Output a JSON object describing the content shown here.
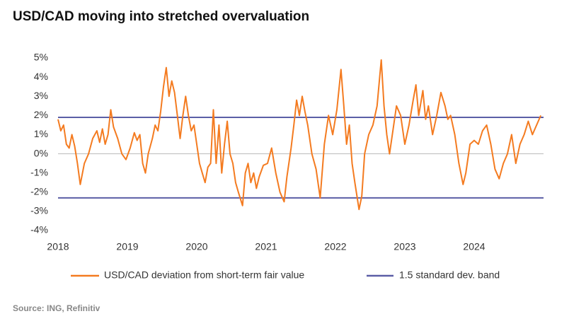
{
  "chart_data": {
    "type": "line",
    "title": "USD/CAD moving into stretched overvaluation",
    "source": "Source: ING, Refinitiv",
    "x": [
      2018.0,
      2018.04,
      2018.08,
      2018.12,
      2018.16,
      2018.2,
      2018.24,
      2018.28,
      2018.32,
      2018.38,
      2018.44,
      2018.5,
      2018.56,
      2018.6,
      2018.64,
      2018.68,
      2018.72,
      2018.76,
      2018.8,
      2018.86,
      2018.92,
      2018.98,
      2019.04,
      2019.1,
      2019.14,
      2019.18,
      2019.22,
      2019.26,
      2019.3,
      2019.36,
      2019.4,
      2019.44,
      2019.48,
      2019.52,
      2019.56,
      2019.6,
      2019.64,
      2019.68,
      2019.72,
      2019.76,
      2019.8,
      2019.84,
      2019.88,
      2019.92,
      2019.96,
      2020.0,
      2020.04,
      2020.08,
      2020.12,
      2020.16,
      2020.2,
      2020.24,
      2020.28,
      2020.32,
      2020.36,
      2020.4,
      2020.44,
      2020.48,
      2020.52,
      2020.56,
      2020.6,
      2020.66,
      2020.7,
      2020.74,
      2020.78,
      2020.82,
      2020.86,
      2020.9,
      2020.96,
      2021.02,
      2021.08,
      2021.14,
      2021.2,
      2021.26,
      2021.3,
      2021.36,
      2021.4,
      2021.44,
      2021.48,
      2021.52,
      2021.56,
      2021.6,
      2021.66,
      2021.72,
      2021.78,
      2021.84,
      2021.9,
      2021.96,
      2022.02,
      2022.08,
      2022.12,
      2022.16,
      2022.2,
      2022.24,
      2022.28,
      2022.34,
      2022.38,
      2022.42,
      2022.48,
      2022.54,
      2022.6,
      2022.66,
      2022.7,
      2022.74,
      2022.78,
      2022.84,
      2022.88,
      2022.94,
      2023.0,
      2023.06,
      2023.12,
      2023.16,
      2023.2,
      2023.26,
      2023.3,
      2023.34,
      2023.4,
      2023.46,
      2023.52,
      2023.58,
      2023.62,
      2023.66,
      2023.72,
      2023.78,
      2023.84,
      2023.88,
      2023.94,
      2024.0,
      2024.06,
      2024.12,
      2024.18,
      2024.24,
      2024.3,
      2024.36,
      2024.42,
      2024.48,
      2024.54,
      2024.6,
      2024.66,
      2024.72,
      2024.78,
      2024.84,
      2024.9,
      2024.96
    ],
    "series": [
      {
        "name": "USD/CAD deviation from short-term fair value",
        "color": "#f47b20",
        "values": [
          1.8,
          1.2,
          1.5,
          0.5,
          0.3,
          1.0,
          0.4,
          -0.5,
          -1.6,
          -0.5,
          0.0,
          0.8,
          1.2,
          0.6,
          1.3,
          0.5,
          1.0,
          2.3,
          1.4,
          0.8,
          0.0,
          -0.3,
          0.3,
          1.1,
          0.7,
          1.0,
          -0.5,
          -1.0,
          0.0,
          0.8,
          1.5,
          1.2,
          2.2,
          3.5,
          4.5,
          3.0,
          3.8,
          3.2,
          2.0,
          0.8,
          2.0,
          3.0,
          2.0,
          1.2,
          1.5,
          0.5,
          -0.5,
          -1.0,
          -1.5,
          -0.7,
          -0.5,
          2.3,
          -0.5,
          1.5,
          -1.0,
          0.5,
          1.7,
          0.0,
          -0.5,
          -1.5,
          -2.0,
          -2.7,
          -1.0,
          -0.5,
          -1.5,
          -1.0,
          -1.8,
          -1.2,
          -0.6,
          -0.5,
          0.3,
          -1.0,
          -2.0,
          -2.5,
          -1.2,
          0.3,
          1.5,
          2.8,
          2.0,
          3.0,
          2.2,
          1.5,
          0.0,
          -0.8,
          -2.3,
          0.5,
          2.0,
          1.0,
          2.3,
          4.4,
          2.5,
          0.5,
          1.5,
          -0.5,
          -1.5,
          -2.9,
          -2.2,
          0.0,
          1.0,
          1.5,
          2.5,
          4.9,
          2.5,
          1.0,
          0.0,
          1.5,
          2.5,
          2.0,
          0.5,
          1.5,
          2.8,
          3.6,
          2.0,
          3.3,
          1.8,
          2.5,
          1.0,
          2.0,
          3.2,
          2.5,
          1.8,
          2.0,
          1.0,
          -0.5,
          -1.6,
          -1.0,
          0.5,
          0.7,
          0.5,
          1.2,
          1.5,
          0.5,
          -0.8,
          -1.3,
          -0.5,
          0.0,
          1.0,
          -0.5,
          0.5,
          1.0,
          1.7,
          1.0,
          1.5,
          2.0
        ]
      }
    ],
    "reference_lines": {
      "name": "1.5 standard dev. band",
      "color": "#5b5ea6",
      "values": [
        1.9,
        -2.3
      ]
    },
    "xlim": [
      2018,
      2025
    ],
    "xticks": [
      2018,
      2019,
      2020,
      2021,
      2022,
      2023,
      2024
    ],
    "ylim": [
      -4,
      5
    ],
    "yticks": [
      {
        "value": -4,
        "label": "-4%"
      },
      {
        "value": -3,
        "label": "-3%"
      },
      {
        "value": -2,
        "label": "-2%"
      },
      {
        "value": -1,
        "label": "-1%"
      },
      {
        "value": 0,
        "label": "0%"
      },
      {
        "value": 1,
        "label": "1%"
      },
      {
        "value": 2,
        "label": "2%"
      },
      {
        "value": 3,
        "label": "3%"
      },
      {
        "value": 4,
        "label": "4%"
      },
      {
        "value": 5,
        "label": "5%"
      }
    ]
  }
}
